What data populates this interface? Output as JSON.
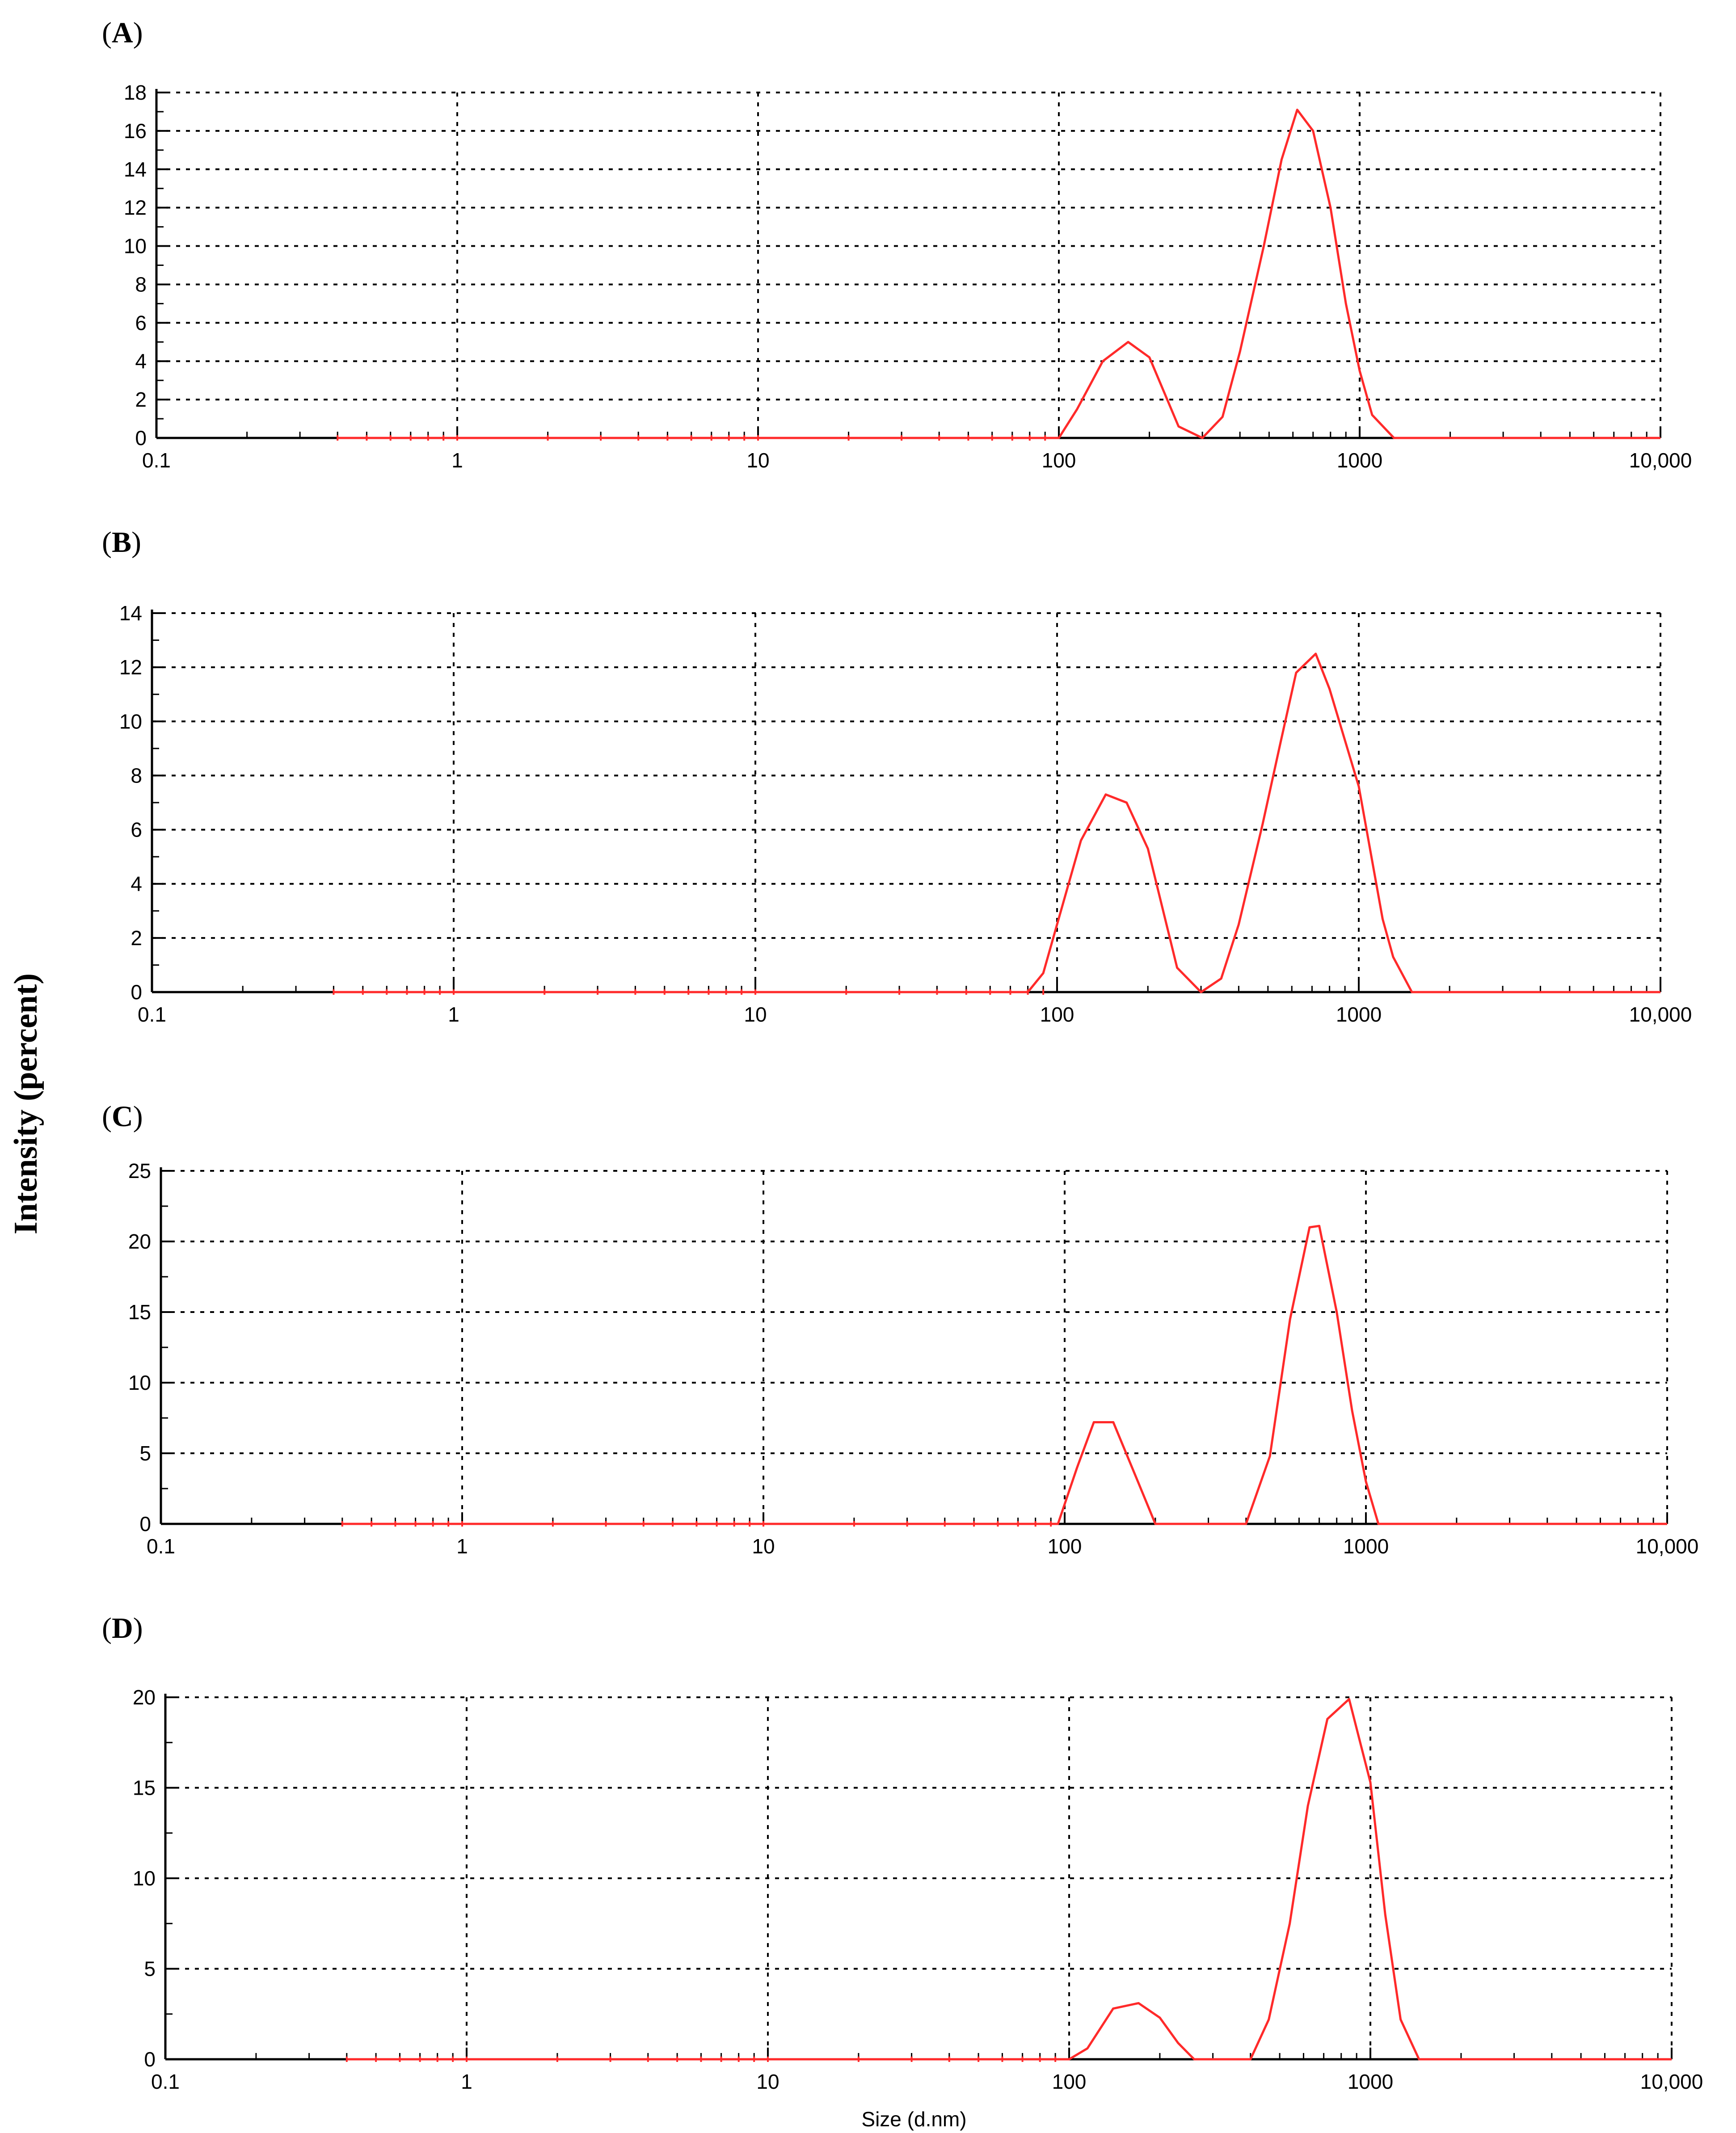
{
  "figure": {
    "ylabel": "Intensity (percent)",
    "xlabel": "Size (d.nm)",
    "line_color": "#ff2a2a",
    "grid": true,
    "xscale": "log"
  },
  "chart_data": [
    {
      "type": "line",
      "panel": "A",
      "xlim": [
        0.1,
        10000
      ],
      "ylim": [
        0,
        18
      ],
      "x_ticks": [
        "0.1",
        "1",
        "10",
        "100",
        "1000",
        "10,000"
      ],
      "y_ticks": [
        "0",
        "2",
        "4",
        "6",
        "8",
        "10",
        "12",
        "14",
        "16",
        "18"
      ],
      "series": [
        {
          "x": [
            0.4,
            100,
            115,
            140,
            170,
            200,
            250,
            300,
            350,
            400,
            480,
            550,
            620,
            700,
            800,
            900,
            1000,
            1100,
            1300,
            10000
          ],
          "y": [
            0,
            0,
            1.5,
            4,
            5,
            4.2,
            0.6,
            0,
            1.1,
            4.5,
            10,
            14.5,
            17.1,
            16,
            12,
            7,
            3.5,
            1.2,
            0,
            0
          ]
        }
      ]
    },
    {
      "type": "line",
      "panel": "B",
      "xlim": [
        0.1,
        10000
      ],
      "ylim": [
        0,
        14
      ],
      "x_ticks": [
        "0.1",
        "1",
        "10",
        "100",
        "1000",
        "10,000"
      ],
      "y_ticks": [
        "0",
        "2",
        "4",
        "6",
        "8",
        "10",
        "12",
        "14"
      ],
      "series": [
        {
          "x": [
            0.4,
            80,
            90,
            100,
            120,
            145,
            170,
            200,
            250,
            300,
            350,
            400,
            480,
            550,
            620,
            720,
            800,
            1000,
            1200,
            1300,
            1500,
            10000
          ],
          "y": [
            0,
            0,
            0.7,
            2.5,
            5.6,
            7.3,
            7.0,
            5.3,
            0.9,
            0,
            0.5,
            2.5,
            6.2,
            9.2,
            11.8,
            12.5,
            11.2,
            7.6,
            2.7,
            1.3,
            0,
            0
          ]
        }
      ]
    },
    {
      "type": "line",
      "panel": "C",
      "xlim": [
        0.1,
        10000
      ],
      "ylim": [
        0,
        25
      ],
      "x_ticks": [
        "0.1",
        "1",
        "10",
        "100",
        "1000",
        "10,000"
      ],
      "y_ticks": [
        "0",
        "5",
        "10",
        "15",
        "20",
        "25"
      ],
      "series": [
        {
          "x": [
            0.4,
            95,
            110,
            125,
            145,
            175,
            200,
            400,
            480,
            560,
            650,
            700,
            800,
            900,
            1000,
            1100,
            10000
          ],
          "y": [
            0,
            0,
            4,
            7.2,
            7.2,
            3,
            0,
            0,
            4.8,
            14.5,
            21,
            21.1,
            15,
            8,
            3,
            0,
            0
          ]
        }
      ]
    },
    {
      "type": "line",
      "panel": "D",
      "xlim": [
        0.1,
        10000
      ],
      "ylim": [
        0,
        20
      ],
      "x_ticks": [
        "0.1",
        "1",
        "10",
        "100",
        "1000",
        "10,000"
      ],
      "y_ticks": [
        "0",
        "5",
        "10",
        "15",
        "20"
      ],
      "series": [
        {
          "x": [
            0.4,
            100,
            115,
            140,
            170,
            200,
            230,
            260,
            400,
            460,
            540,
            620,
            720,
            850,
            1000,
            1120,
            1260,
            1450,
            10000
          ],
          "y": [
            0,
            0,
            0.6,
            2.8,
            3.1,
            2.3,
            0.9,
            0,
            0,
            2.2,
            7.5,
            14,
            18.8,
            19.9,
            15.3,
            8,
            2.2,
            0,
            0
          ]
        }
      ]
    }
  ]
}
